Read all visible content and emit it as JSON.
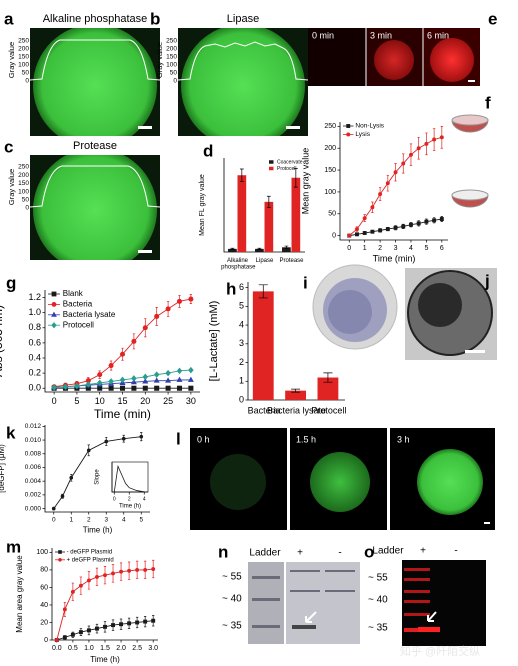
{
  "images": {
    "a": {
      "panel": "a",
      "title": "Alkaline phosphatase",
      "profile_ylabel": "Gray value",
      "profile_yticks": [
        0,
        50,
        100,
        150,
        200,
        250
      ]
    },
    "b": {
      "panel": "b",
      "title": "Lipase",
      "profile_ylabel": "Gray value",
      "profile_yticks": [
        0,
        50,
        100,
        150,
        200,
        250
      ]
    },
    "c": {
      "panel": "c",
      "title": "Protease",
      "profile_ylabel": "Gray value",
      "profile_yticks": [
        0,
        50,
        100,
        150,
        200,
        250
      ]
    },
    "e": {
      "panel": "e",
      "frames": [
        "0 min",
        "3 min",
        "6 min"
      ]
    },
    "i": {
      "panel": "i"
    },
    "j": {
      "panel": "j"
    },
    "l": {
      "panel": "l",
      "frames": [
        "0 h",
        "1.5 h",
        "3 h"
      ]
    },
    "n": {
      "panel": "n",
      "lanes": [
        "Ladder",
        "+",
        "-"
      ],
      "markers": [
        "~ 55",
        "~ 40",
        "~ 35"
      ]
    },
    "o": {
      "panel": "o",
      "lanes": [
        "Ladder",
        "+",
        "-"
      ],
      "markers": [
        "~ 55",
        "~ 40",
        "~ 35"
      ]
    }
  },
  "watermark": "知乎 @阡陌交纵",
  "chart_data": [
    {
      "type": "bar",
      "panel": "d",
      "ylabel": "Mean FL gray value",
      "categories": [
        "Alkaline phosphatase",
        "Lipase",
        "Protease"
      ],
      "series": [
        {
          "name": "Coacervate",
          "color": "#1a1a1a",
          "values": [
            10,
            10,
            15
          ],
          "errors": [
            2,
            2,
            4
          ]
        },
        {
          "name": "Protocell",
          "color": "#e02424",
          "values": [
            245,
            160,
            237
          ],
          "errors": [
            20,
            18,
            30
          ]
        }
      ],
      "ylim": [
        0,
        300
      ],
      "legend": "top-right"
    },
    {
      "type": "line",
      "panel": "f",
      "xlabel": "Time (min)",
      "ylabel": "Mean gray value",
      "x": [
        0,
        0.5,
        1,
        1.5,
        2,
        2.5,
        3,
        3.5,
        4,
        4.5,
        5,
        5.5,
        6
      ],
      "series": [
        {
          "name": "Non-Lysis",
          "color": "#1a1a1a",
          "marker": "square",
          "values": [
            0,
            3,
            6,
            9,
            12,
            15,
            18,
            21,
            25,
            28,
            32,
            35,
            38
          ],
          "errors": [
            2,
            2,
            3,
            3,
            4,
            4,
            5,
            5,
            5,
            6,
            6,
            6,
            6
          ]
        },
        {
          "name": "Lysis",
          "color": "#e02424",
          "marker": "circle",
          "values": [
            0,
            15,
            40,
            65,
            95,
            120,
            145,
            165,
            185,
            200,
            210,
            220,
            225
          ],
          "errors": [
            2,
            5,
            8,
            12,
            15,
            18,
            20,
            22,
            25,
            25,
            25,
            25,
            25
          ]
        }
      ],
      "xlim": [
        -0.6,
        6.4
      ],
      "xticks": [
        0,
        1,
        2,
        3,
        4,
        5,
        6
      ],
      "ylim": [
        -10,
        260
      ],
      "yticks": [
        0,
        50,
        100,
        150,
        200,
        250
      ],
      "legend": "top-left"
    },
    {
      "type": "line",
      "panel": "g",
      "xlabel": "Time (min)",
      "ylabel": "Abs (565 nm)",
      "x": [
        0,
        2.5,
        5,
        7.5,
        10,
        12.5,
        15,
        17.5,
        20,
        22.5,
        25,
        27.5,
        30
      ],
      "series": [
        {
          "name": "Blank",
          "color": "#1a1a1a",
          "marker": "square",
          "values": [
            0,
            0,
            0,
            0,
            0,
            0,
            0,
            0,
            0,
            0,
            0,
            0,
            0
          ]
        },
        {
          "name": "Bacteria",
          "color": "#e02424",
          "marker": "circle",
          "values": [
            0.02,
            0.04,
            0.06,
            0.1,
            0.18,
            0.3,
            0.45,
            0.62,
            0.8,
            0.95,
            1.05,
            1.15,
            1.18
          ],
          "errors": [
            0.01,
            0.02,
            0.03,
            0.04,
            0.05,
            0.06,
            0.08,
            0.1,
            0.12,
            0.12,
            0.1,
            0.08,
            0.06
          ]
        },
        {
          "name": "Bacteria lysate",
          "color": "#2f3fae",
          "marker": "triangle",
          "values": [
            0.01,
            0.02,
            0.03,
            0.04,
            0.05,
            0.06,
            0.07,
            0.08,
            0.09,
            0.1,
            0.1,
            0.11,
            0.11
          ]
        },
        {
          "name": "Protocell",
          "color": "#2a9d8f",
          "marker": "diamond",
          "values": [
            0.01,
            0.02,
            0.03,
            0.05,
            0.07,
            0.09,
            0.11,
            0.13,
            0.15,
            0.18,
            0.2,
            0.23,
            0.24
          ]
        }
      ],
      "xlim": [
        -2,
        32
      ],
      "xticks": [
        0,
        5,
        10,
        15,
        20,
        25,
        30
      ],
      "ylim": [
        -0.05,
        1.3
      ],
      "yticks": [
        {
          "value": 0,
          "label": "0.0"
        },
        0.2,
        0.4,
        0.6,
        0.8,
        {
          "value": 1,
          "label": "1.0"
        },
        1.2
      ],
      "legend": "top-left"
    },
    {
      "type": "bar",
      "panel": "h",
      "ylabel": "[L-Lactate] (mM)",
      "categories": [
        "Bacteria",
        "Bacteria lysate",
        "Protocell"
      ],
      "values": [
        5.8,
        0.5,
        1.2
      ],
      "errors": [
        0.35,
        0.08,
        0.25
      ],
      "color": "#e02424",
      "ylim": [
        0,
        6.3
      ],
      "yticks": [
        0,
        1,
        2,
        3,
        4,
        5,
        6
      ]
    },
    {
      "type": "line",
      "panel": "k",
      "xlabel": "Time (h)",
      "ylabel": "[deGFP] (μM)",
      "x": [
        0,
        0.5,
        1,
        2,
        3,
        4,
        5
      ],
      "series": [
        {
          "color": "#1a1a1a",
          "marker": "circle",
          "values": [
            0,
            0.0018,
            0.0045,
            0.0085,
            0.0098,
            0.0102,
            0.0105
          ],
          "errors": [
            0.0002,
            0.0003,
            0.0005,
            0.0008,
            0.0006,
            0.0005,
            0.0006
          ]
        }
      ],
      "xlim": [
        -0.5,
        5.5
      ],
      "xticks": [
        0,
        1,
        2,
        3,
        4,
        5
      ],
      "ylim": [
        -0.0005,
        0.0122
      ],
      "yticks": [
        {
          "value": 0,
          "label": "0.000"
        },
        {
          "value": 0.002,
          "label": "0.002"
        },
        {
          "value": 0.004,
          "label": "0.004"
        },
        {
          "value": 0.006,
          "label": "0.006"
        },
        {
          "value": 0.008,
          "label": "0.008"
        },
        {
          "value": 0.01,
          "label": "0.010"
        },
        {
          "value": 0.012,
          "label": "0.012"
        }
      ]
    },
    {
      "type": "line",
      "xlabel": "Time (h)",
      "ylabel": "Slope",
      "x": [
        0,
        0.5,
        1,
        1.5,
        2,
        3,
        4
      ],
      "series": [
        {
          "color": "#1a1a1a",
          "values": [
            0,
            0.9,
            0.6,
            0.3,
            0.15,
            0.05,
            0.01
          ]
        }
      ],
      "xlim": [
        -0.3,
        4.5
      ],
      "xticks": [
        0,
        2,
        4
      ],
      "ylim": [
        0,
        1.05
      ]
    },
    {
      "type": "line",
      "panel": "m",
      "xlabel": "Time (h)",
      "ylabel": "Mean area gray value",
      "x": [
        0,
        0.25,
        0.5,
        0.75,
        1,
        1.25,
        1.5,
        1.75,
        2,
        2.25,
        2.5,
        2.75,
        3
      ],
      "series": [
        {
          "name": "- deGFP Plasmid",
          "color": "#1a1a1a",
          "marker": "square",
          "values": [
            0,
            3,
            6,
            9,
            11,
            13,
            15,
            17,
            18,
            19,
            20,
            21,
            22
          ],
          "errors": [
            1,
            2,
            3,
            4,
            5,
            5,
            6,
            6,
            6,
            6,
            6,
            6,
            6
          ]
        },
        {
          "name": "+ deGFP Plasmid",
          "color": "#e02424",
          "marker": "circle",
          "values": [
            0,
            35,
            55,
            62,
            68,
            72,
            74,
            76,
            78,
            79,
            80,
            80,
            81
          ],
          "errors": [
            1,
            8,
            10,
            10,
            10,
            10,
            10,
            10,
            10,
            10,
            10,
            10,
            10
          ]
        }
      ],
      "xlim": [
        -0.15,
        3.15
      ],
      "xticks": [
        {
          "value": 0,
          "label": "0.0"
        },
        0.5,
        {
          "value": 1,
          "label": "1.0"
        },
        1.5,
        {
          "value": 2,
          "label": "2.0"
        },
        2.5,
        {
          "value": 3,
          "label": "3.0"
        }
      ],
      "ylim": [
        0,
        105
      ],
      "yticks": [
        0,
        20,
        40,
        60,
        80,
        100
      ],
      "legend": "top-left"
    }
  ]
}
